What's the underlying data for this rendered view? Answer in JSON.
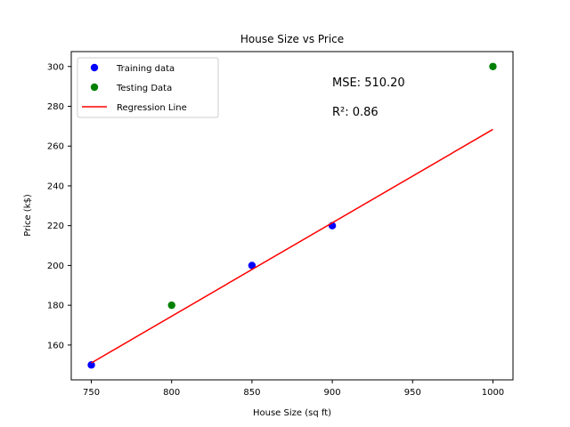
{
  "chart_data": {
    "type": "scatter",
    "title": "House Size vs Price",
    "xlabel": "House Size (sq ft)",
    "ylabel": "Price (k$)",
    "xlim": [
      737.5,
      1012.5
    ],
    "ylim": [
      142.5,
      307.5
    ],
    "xticks": [
      750,
      800,
      850,
      900,
      950,
      1000
    ],
    "yticks": [
      160,
      180,
      200,
      220,
      240,
      260,
      280,
      300
    ],
    "grid": false,
    "legend_position": "top-left",
    "series": [
      {
        "name": "Training data",
        "kind": "scatter",
        "color": "#0000ff",
        "x": [
          750,
          850,
          900
        ],
        "y": [
          150,
          200,
          220
        ]
      },
      {
        "name": "Testing Data",
        "kind": "scatter",
        "color": "#008000",
        "x": [
          800,
          1000
        ],
        "y": [
          180,
          300
        ]
      },
      {
        "name": "Regression Line",
        "kind": "line",
        "color": "#ff0000",
        "x": [
          750,
          1000
        ],
        "y": [
          151.0,
          268.4
        ]
      }
    ],
    "annotations": [
      {
        "text": "MSE: 510.20"
      },
      {
        "text": "R²: 0.86"
      }
    ]
  }
}
